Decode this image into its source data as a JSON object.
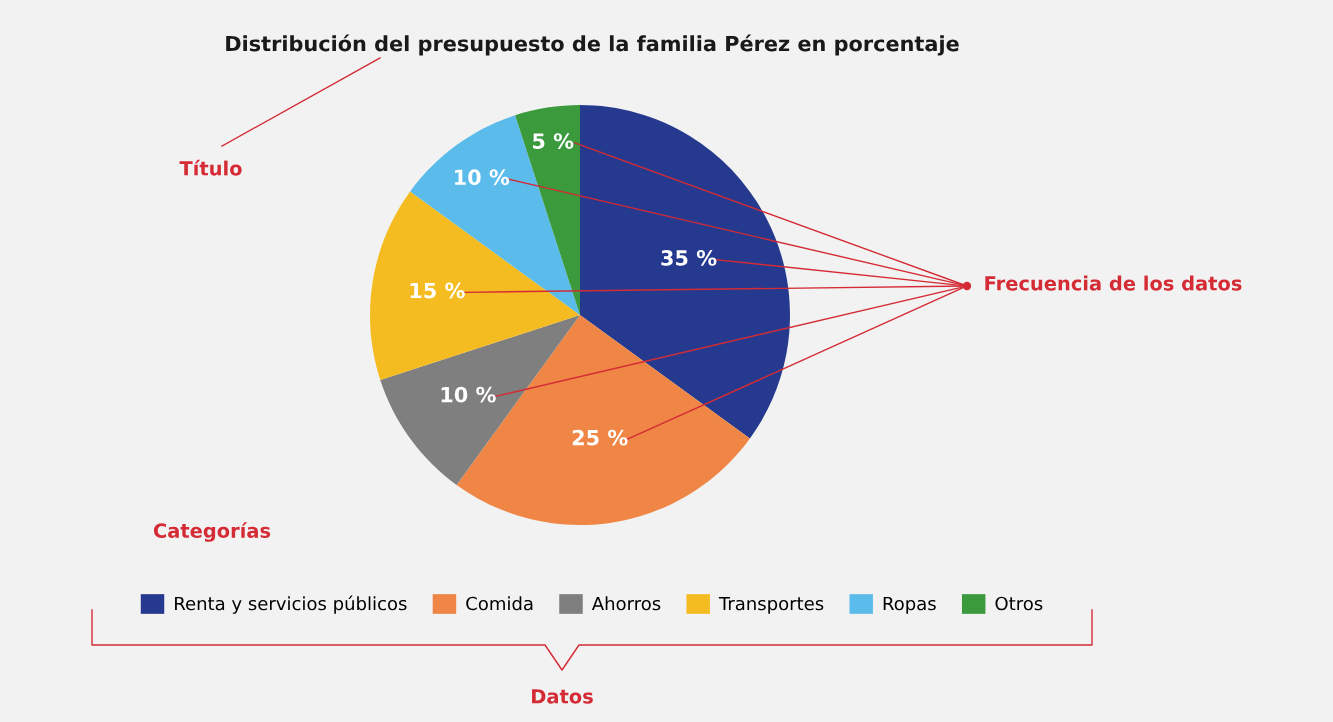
{
  "chart_data": {
    "type": "pie",
    "title": "Distribución del presupuesto de la familia Pérez en porcentaje",
    "categories": [
      "Renta y servicios públicos",
      "Comida",
      "Ahorros",
      "Transportes",
      "Ropas",
      "Otros"
    ],
    "values": [
      35,
      25,
      10,
      15,
      10,
      5
    ],
    "colors": [
      "#253a8e",
      "#ef8645",
      "#7f7f7f",
      "#f5bc22",
      "#5bbcec",
      "#3a9a3c"
    ],
    "value_labels": [
      "35 %",
      "25 %",
      "10 %",
      "15 %",
      "10 %",
      "5 %"
    ],
    "legend": "bottom",
    "annotations": [
      "Título",
      "Frecuencia de los datos",
      "Categorías",
      "Datos"
    ]
  }
}
